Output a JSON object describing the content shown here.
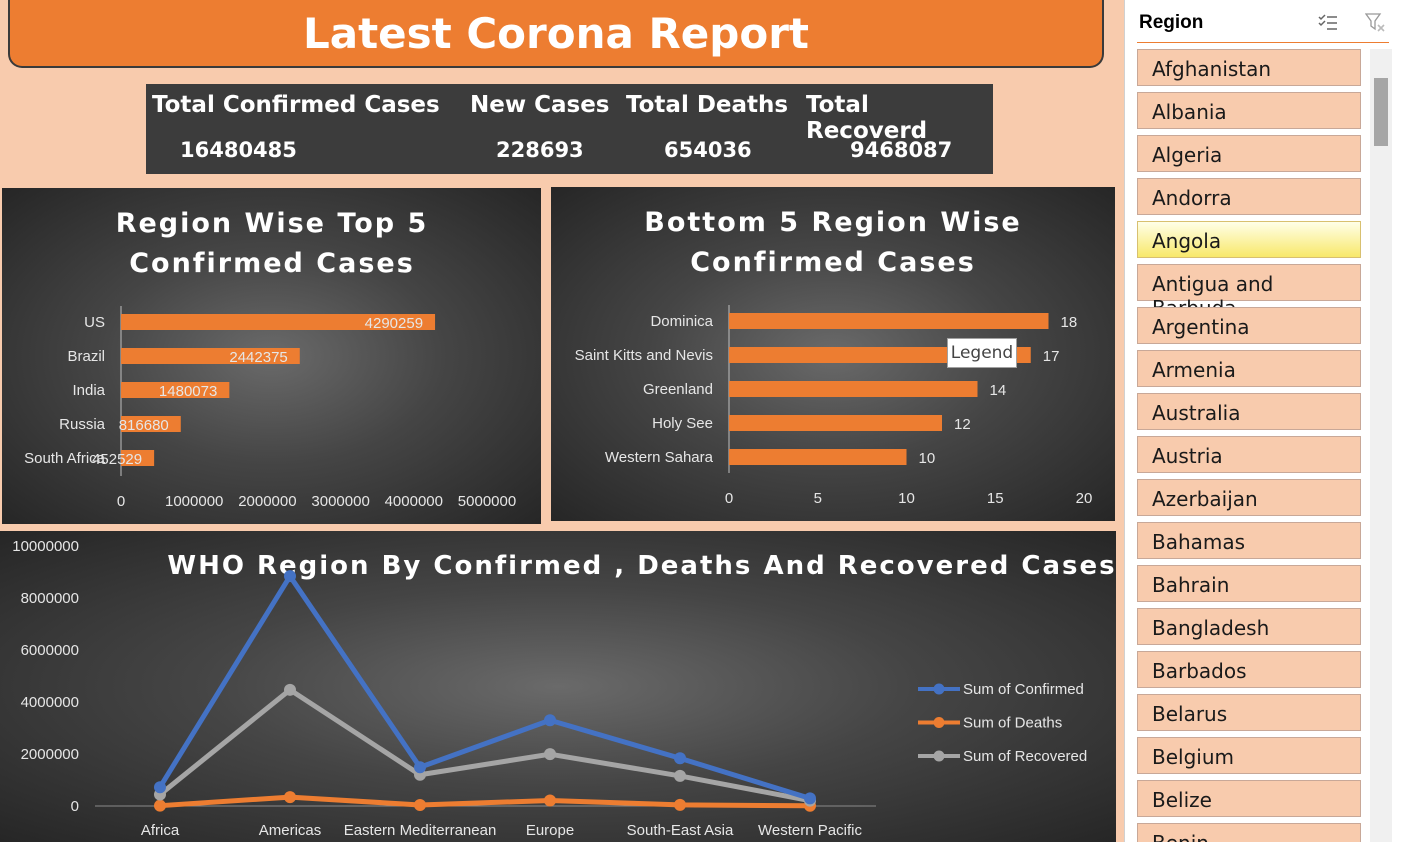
{
  "report_title": "Latest Corona Report",
  "kpis": {
    "confirmed_label": "Total Confirmed Cases",
    "confirmed_value": "16480485",
    "new_label": "New Cases",
    "new_value": "228693",
    "deaths_label": "Total Deaths",
    "deaths_value": "654036",
    "recovered_label": "Total Recoverd",
    "recovered_value": "9468087"
  },
  "colors": {
    "accent": "#ed7d31",
    "background": "#f8cbad",
    "confirmed": "#4472c4",
    "deaths": "#ed7d31",
    "recovered": "#a5a5a5"
  },
  "chart_data": [
    {
      "type": "bar",
      "title": [
        "Region Wise Top 5",
        "Confirmed Cases"
      ],
      "categories": [
        "US",
        "Brazil",
        "India",
        "Russia",
        "South Africa"
      ],
      "values": [
        4290259,
        2442375,
        1480073,
        816680,
        452529
      ],
      "data_labels": [
        "4290259",
        "2442375",
        "1480073",
        "816680",
        "452529"
      ],
      "xlim": [
        0,
        5000000
      ],
      "ticks": [
        "0",
        "1000000",
        "2000000",
        "3000000",
        "4000000",
        "5000000"
      ]
    },
    {
      "type": "bar",
      "title": [
        "Bottom 5 Region Wise",
        "Confirmed Cases"
      ],
      "categories": [
        "Dominica",
        "Saint Kitts and Nevis",
        "Greenland",
        "Holy See",
        "Western Sahara"
      ],
      "values": [
        18,
        17,
        14,
        12,
        10
      ],
      "data_labels": [
        "18",
        "17",
        "14",
        "12",
        "10"
      ],
      "xlim": [
        0,
        20
      ],
      "ticks": [
        "0",
        "5",
        "10",
        "15",
        "20"
      ],
      "tooltip": "Legend"
    },
    {
      "type": "line",
      "title": "WHO Region By Confirmed , Deaths And Recovered Cases",
      "categories": [
        "Africa",
        "Americas",
        "Eastern Mediterranean",
        "Europe",
        "South-East Asia",
        "Western Pacific"
      ],
      "series": [
        {
          "name": "Sum of Confirmed",
          "values": [
            723207,
            8839286,
            1490744,
            3299523,
            1835297,
            292428
          ]
        },
        {
          "name": "Sum of Deaths",
          "values": [
            12223,
            342732,
            38339,
            211144,
            41349,
            8249
          ]
        },
        {
          "name": "Sum of Recovered",
          "values": [
            440645,
            4468616,
            1201400,
            1993723,
            1156933,
            206770
          ]
        }
      ],
      "ylim": [
        0,
        10000000
      ],
      "ticks": [
        "0",
        "2000000",
        "4000000",
        "6000000",
        "8000000",
        "10000000"
      ],
      "legend": "right"
    }
  ],
  "slicer": {
    "title": "Region",
    "multi_select_icon": "multi-select-icon",
    "clear_filter_icon": "clear-filter-icon",
    "selected": "Angola",
    "items": [
      "Afghanistan",
      "Albania",
      "Algeria",
      "Andorra",
      "Angola",
      "Antigua and Barbuda",
      "Argentina",
      "Armenia",
      "Australia",
      "Austria",
      "Azerbaijan",
      "Bahamas",
      "Bahrain",
      "Bangladesh",
      "Barbados",
      "Belarus",
      "Belgium",
      "Belize",
      "Benin"
    ]
  }
}
